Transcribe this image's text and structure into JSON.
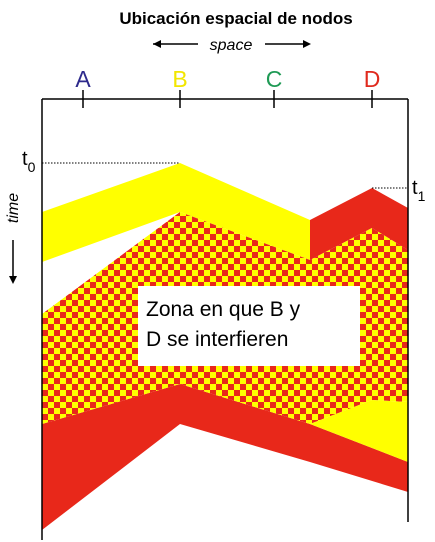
{
  "title": "Ubicación espacial de nodos",
  "space_label": "space",
  "time_label": "time",
  "nodes": [
    {
      "label": "A",
      "color": "#2e2a8c"
    },
    {
      "label": "B",
      "color": "#f2e600"
    },
    {
      "label": "C",
      "color": "#1f9a55"
    },
    {
      "label": "D",
      "color": "#e02a1e"
    }
  ],
  "time_markers": [
    {
      "base": "t",
      "sub": "0"
    },
    {
      "base": "t",
      "sub": "1"
    }
  ],
  "interference_box": {
    "line1": "Zona en que B y",
    "line2": "D se interfieren"
  },
  "colors": {
    "b_signal": "#ffff00",
    "d_signal": "#e8281a",
    "checker_a": "#ffff00",
    "checker_b": "#e8281a"
  }
}
